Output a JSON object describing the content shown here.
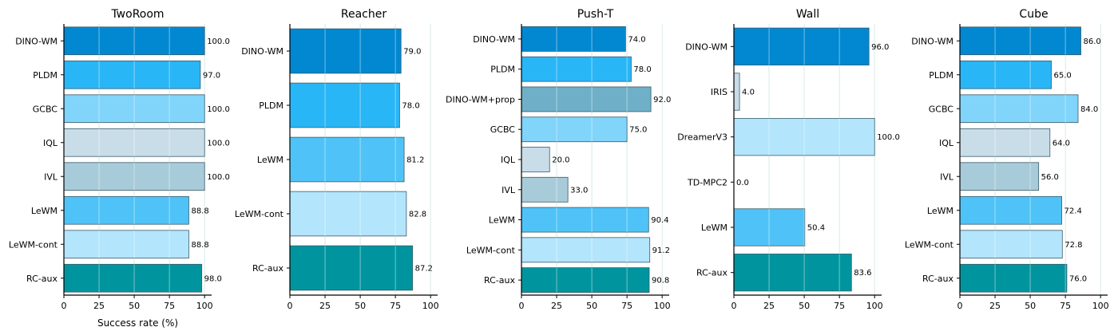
{
  "chart_data": [
    {
      "type": "bar",
      "orientation": "horizontal",
      "title": "TwoRoom",
      "xlabel": "Success rate (%)",
      "xlim": [
        0,
        105
      ],
      "xticks": [
        0,
        25,
        50,
        75,
        100
      ],
      "grid": "vertical",
      "categories": [
        "DINO-WM",
        "PLDM",
        "GCBC",
        "IQL",
        "IVL",
        "LeWM",
        "LeWM-cont",
        "RC-aux"
      ],
      "values": [
        100.0,
        97.0,
        100.0,
        100.0,
        100.0,
        88.8,
        88.8,
        98.0
      ],
      "value_labels": [
        "100.0",
        "97.0",
        "100.0",
        "100.0",
        "100.0",
        "88.8",
        "88.8",
        "98.0"
      ]
    },
    {
      "type": "bar",
      "orientation": "horizontal",
      "title": "Reacher",
      "xlabel": "",
      "xlim": [
        0,
        105
      ],
      "xticks": [
        0,
        25,
        50,
        75,
        100
      ],
      "grid": "vertical",
      "categories": [
        "DINO-WM",
        "PLDM",
        "LeWM",
        "LeWM-cont",
        "RC-aux"
      ],
      "values": [
        79.0,
        78.0,
        81.2,
        82.8,
        87.2
      ],
      "value_labels": [
        "79.0",
        "78.0",
        "81.2",
        "82.8",
        "87.2"
      ]
    },
    {
      "type": "bar",
      "orientation": "horizontal",
      "title": "Push-T",
      "xlabel": "",
      "xlim": [
        0,
        105
      ],
      "xticks": [
        0,
        25,
        50,
        75,
        100
      ],
      "grid": "vertical",
      "categories": [
        "DINO-WM",
        "PLDM",
        "DINO-WM+prop",
        "GCBC",
        "IQL",
        "IVL",
        "LeWM",
        "LeWM-cont",
        "RC-aux"
      ],
      "values": [
        74.0,
        78.0,
        92.0,
        75.0,
        20.0,
        33.0,
        90.4,
        91.2,
        90.8
      ],
      "value_labels": [
        "74.0",
        "78.0",
        "92.0",
        "75.0",
        "20.0",
        "33.0",
        "90.4",
        "91.2",
        "90.8"
      ]
    },
    {
      "type": "bar",
      "orientation": "horizontal",
      "title": "Wall",
      "xlabel": "",
      "xlim": [
        0,
        105
      ],
      "xticks": [
        0,
        25,
        50,
        75,
        100
      ],
      "grid": "vertical",
      "categories": [
        "DINO-WM",
        "IRIS",
        "DreamerV3",
        "TD-MPC2",
        "LeWM",
        "RC-aux"
      ],
      "values": [
        96.0,
        4.0,
        100.0,
        0.0,
        50.4,
        83.6
      ],
      "value_labels": [
        "96.0",
        "4.0",
        "100.0",
        "0.0",
        "50.4",
        "83.6"
      ]
    },
    {
      "type": "bar",
      "orientation": "horizontal",
      "title": "Cube",
      "xlabel": "",
      "xlim": [
        0,
        105
      ],
      "xticks": [
        0,
        25,
        50,
        75,
        100
      ],
      "grid": "vertical",
      "categories": [
        "DINO-WM",
        "PLDM",
        "GCBC",
        "IQL",
        "IVL",
        "LeWM",
        "LeWM-cont",
        "RC-aux"
      ],
      "values": [
        86.0,
        65.0,
        84.0,
        64.0,
        56.0,
        72.4,
        72.8,
        76.0
      ],
      "value_labels": [
        "86.0",
        "65.0",
        "84.0",
        "64.0",
        "56.0",
        "72.4",
        "72.8",
        "76.0"
      ]
    }
  ],
  "colors": {
    "DINO-WM": "#0288d1",
    "PLDM": "#29b6f6",
    "GCBC": "#81d4fa",
    "IQL": "#c9dde8",
    "IVL": "#a8cbd9",
    "LeWM": "#4fc3f7",
    "LeWM-cont": "#b3e5fc",
    "RC-aux": "#00959e",
    "DINO-WM+prop": "#6fb0c8",
    "IRIS": "#c9dde8",
    "DreamerV3": "#b3e5fc",
    "TD-MPC2": "#a8cbd9",
    "grid": "#d6ece6",
    "bar_edge": "#3a5a6a"
  }
}
